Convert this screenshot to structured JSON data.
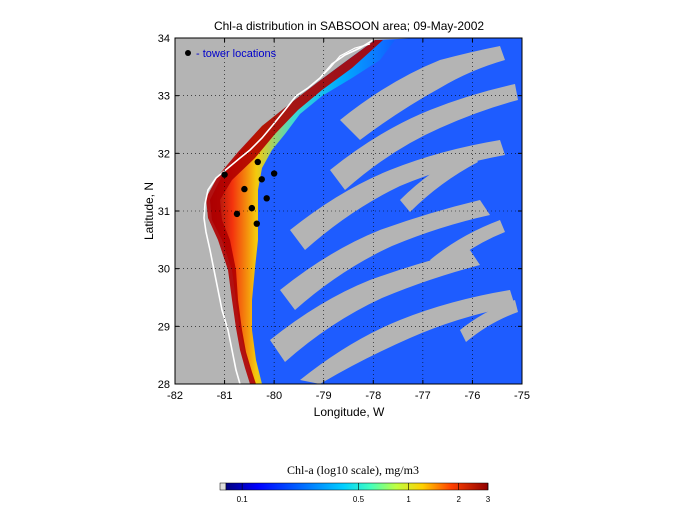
{
  "figure": {
    "title": "Chl-a distribution in SABSOON area; 09-May-2002",
    "xlabel": "Longitude, W",
    "ylabel": "Latitude, N",
    "legend_label": "- tower locations",
    "background_color": "#b4b4b4",
    "coastline_color": "#ffffff",
    "marker_color": "#000000",
    "legend_text_color": "#0000cc"
  },
  "axes": {
    "x_range": [
      -82,
      -75
    ],
    "y_range": [
      28,
      34
    ],
    "x_ticks": [
      "-82",
      "-81",
      "-80",
      "-79",
      "-78",
      "-77",
      "-76",
      "-75"
    ],
    "y_ticks": [
      "28",
      "29",
      "30",
      "31",
      "32",
      "33",
      "34"
    ],
    "grid": "dotted"
  },
  "towers": [
    {
      "lon": -81.0,
      "lat": 31.63
    },
    {
      "lon": -80.33,
      "lat": 31.85
    },
    {
      "lon": -80.0,
      "lat": 31.65
    },
    {
      "lon": -80.25,
      "lat": 31.55
    },
    {
      "lon": -80.6,
      "lat": 31.38
    },
    {
      "lon": -80.15,
      "lat": 31.22
    },
    {
      "lon": -80.45,
      "lat": 31.05
    },
    {
      "lon": -80.75,
      "lat": 30.95
    },
    {
      "lon": -80.35,
      "lat": 30.78
    }
  ],
  "colorbar": {
    "title": "Chl-a (log10 scale), mg/m3",
    "ticks": [
      "0.1",
      "0.5",
      "1",
      "2",
      "3"
    ],
    "colors": [
      "#000080",
      "#0000ff",
      "#0060ff",
      "#00c0ff",
      "#40ffbf",
      "#c0ff40",
      "#ffc000",
      "#ff4000",
      "#c00000",
      "#800000"
    ]
  }
}
